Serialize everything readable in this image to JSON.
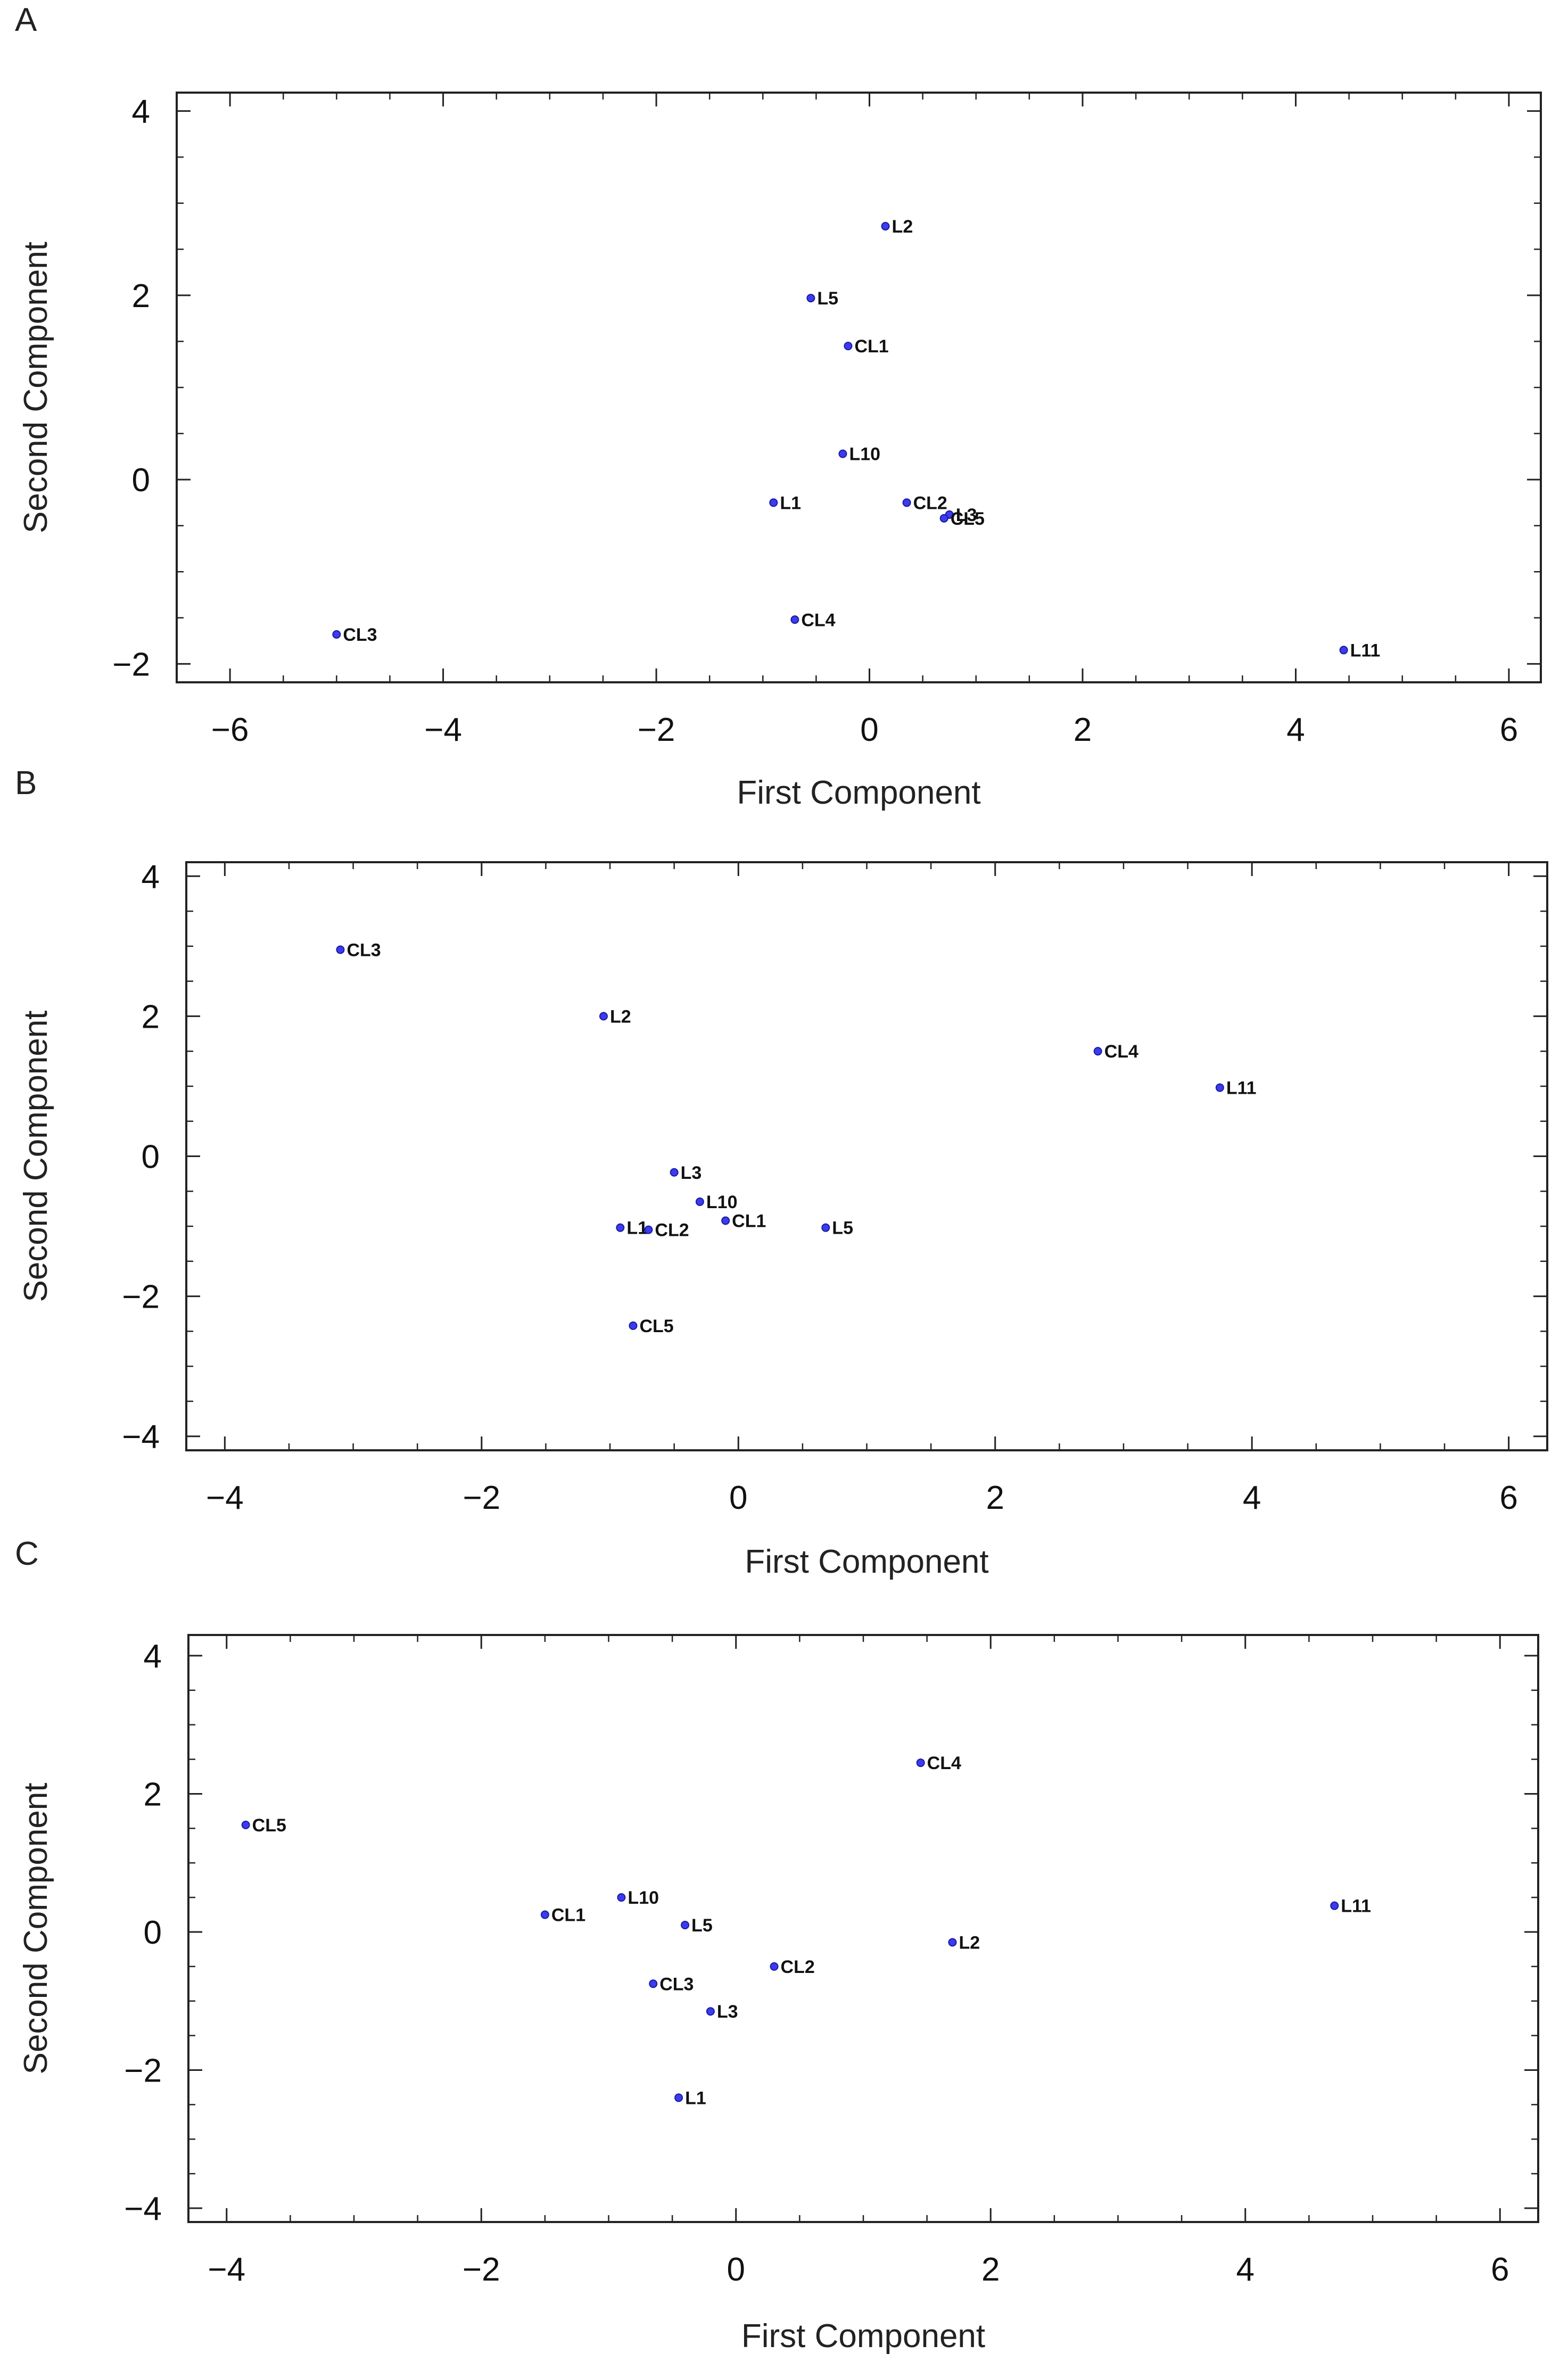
{
  "chart_data": [
    {
      "panel": "A",
      "type": "scatter",
      "xlabel": "First Component",
      "ylabel": "Second Component",
      "xlim": [
        -6.5,
        6.3
      ],
      "ylim": [
        -2.2,
        4.2
      ],
      "xticks": [
        -6,
        -4,
        -2,
        0,
        2,
        4,
        6
      ],
      "yticks": [
        -2,
        0,
        2,
        4
      ],
      "tick_labels_x": [
        "−6",
        "−4",
        "−2",
        "0",
        "2",
        "4",
        "6"
      ],
      "tick_labels_y": [
        "−2",
        "0",
        "2",
        "4"
      ],
      "points": [
        {
          "label": "L2",
          "x": 0.15,
          "y": 2.75
        },
        {
          "label": "L5",
          "x": -0.55,
          "y": 1.97
        },
        {
          "label": "CL1",
          "x": -0.2,
          "y": 1.45
        },
        {
          "label": "L10",
          "x": -0.25,
          "y": 0.28
        },
        {
          "label": "L1",
          "x": -0.9,
          "y": -0.25
        },
        {
          "label": "CL2",
          "x": 0.35,
          "y": -0.25
        },
        {
          "label": "L3",
          "x": 0.75,
          "y": -0.38
        },
        {
          "label": "CL5",
          "x": 0.7,
          "y": -0.42
        },
        {
          "label": "CL4",
          "x": -0.7,
          "y": -1.52
        },
        {
          "label": "CL3",
          "x": -5.0,
          "y": -1.68
        },
        {
          "label": "L11",
          "x": 4.45,
          "y": -1.85
        }
      ]
    },
    {
      "panel": "B",
      "type": "scatter",
      "xlabel": "First Component",
      "ylabel": "Second Component",
      "xlim": [
        -4.3,
        6.3
      ],
      "ylim": [
        -4.2,
        4.2
      ],
      "xticks": [
        -4,
        -2,
        0,
        2,
        4,
        6
      ],
      "yticks": [
        -4,
        -2,
        0,
        2,
        4
      ],
      "tick_labels_x": [
        "−4",
        "−2",
        "0",
        "2",
        "4",
        "6"
      ],
      "tick_labels_y": [
        "−4",
        "−2",
        "0",
        "2",
        "4"
      ],
      "points": [
        {
          "label": "CL3",
          "x": -3.1,
          "y": 2.95
        },
        {
          "label": "L2",
          "x": -1.05,
          "y": 2.0
        },
        {
          "label": "CL4",
          "x": 2.8,
          "y": 1.5
        },
        {
          "label": "L11",
          "x": 3.75,
          "y": 0.98
        },
        {
          "label": "L3",
          "x": -0.5,
          "y": -0.23
        },
        {
          "label": "L10",
          "x": -0.3,
          "y": -0.65
        },
        {
          "label": "L1",
          "x": -0.92,
          "y": -1.02
        },
        {
          "label": "CL2",
          "x": -0.7,
          "y": -1.05
        },
        {
          "label": "CL1",
          "x": -0.1,
          "y": -0.92
        },
        {
          "label": "L5",
          "x": 0.68,
          "y": -1.02
        },
        {
          "label": "CL5",
          "x": -0.82,
          "y": -2.42
        }
      ]
    },
    {
      "panel": "C",
      "type": "scatter",
      "xlabel": "First Component",
      "ylabel": "Second Component",
      "xlim": [
        -4.3,
        6.3
      ],
      "ylim": [
        -4.2,
        4.3
      ],
      "xticks": [
        -4,
        -2,
        0,
        2,
        4,
        6
      ],
      "yticks": [
        -4,
        -2,
        0,
        2,
        4
      ],
      "tick_labels_x": [
        "−4",
        "−2",
        "0",
        "2",
        "4",
        "6"
      ],
      "tick_labels_y": [
        "−4",
        "−2",
        "0",
        "2",
        "4"
      ],
      "points": [
        {
          "label": "CL4",
          "x": 1.45,
          "y": 2.45
        },
        {
          "label": "CL5",
          "x": -3.85,
          "y": 1.55
        },
        {
          "label": "L10",
          "x": -0.9,
          "y": 0.5
        },
        {
          "label": "CL1",
          "x": -1.5,
          "y": 0.25
        },
        {
          "label": "L5",
          "x": -0.4,
          "y": 0.1
        },
        {
          "label": "L11",
          "x": 4.7,
          "y": 0.38
        },
        {
          "label": "L2",
          "x": 1.7,
          "y": -0.15
        },
        {
          "label": "CL2",
          "x": 0.3,
          "y": -0.5
        },
        {
          "label": "CL3",
          "x": -0.65,
          "y": -0.75
        },
        {
          "label": "L3",
          "x": -0.2,
          "y": -1.15
        },
        {
          "label": "L1",
          "x": -0.45,
          "y": -2.4
        }
      ]
    }
  ]
}
